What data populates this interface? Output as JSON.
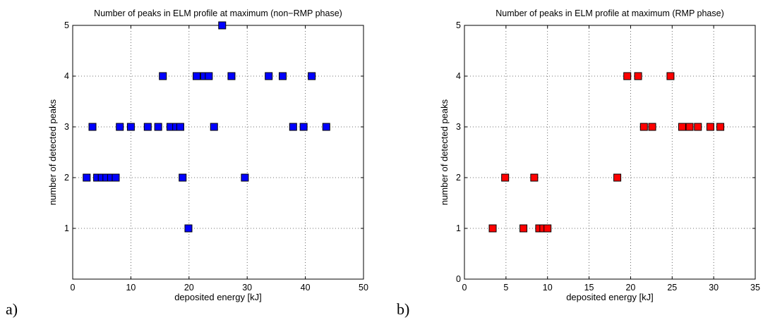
{
  "chart_data": [
    {
      "type": "scatter",
      "panel_label": "a)",
      "title": "Number of peaks in ELM profile at maximum (non−RMP phase)",
      "xlabel": "deposited energy [kJ]",
      "ylabel": "number of detected peaks",
      "xlim": [
        0,
        50
      ],
      "ylim": [
        0,
        5
      ],
      "xticks": [
        0,
        10,
        20,
        30,
        40,
        50
      ],
      "yticks": [
        1,
        2,
        3,
        4,
        5
      ],
      "grid": true,
      "marker": "square",
      "color": "#0000ff",
      "points": [
        [
          2.4,
          2
        ],
        [
          4.2,
          2
        ],
        [
          5.0,
          2
        ],
        [
          5.8,
          2
        ],
        [
          6.6,
          2
        ],
        [
          7.4,
          2
        ],
        [
          3.4,
          3
        ],
        [
          8.1,
          3
        ],
        [
          10.0,
          3
        ],
        [
          12.9,
          3
        ],
        [
          14.7,
          3
        ],
        [
          16.8,
          3
        ],
        [
          17.8,
          3
        ],
        [
          18.5,
          3
        ],
        [
          24.3,
          3
        ],
        [
          37.9,
          3
        ],
        [
          39.7,
          3
        ],
        [
          43.6,
          3
        ],
        [
          15.5,
          4
        ],
        [
          21.3,
          4
        ],
        [
          22.6,
          4
        ],
        [
          23.4,
          4
        ],
        [
          27.3,
          4
        ],
        [
          33.7,
          4
        ],
        [
          36.1,
          4
        ],
        [
          41.1,
          4
        ],
        [
          25.7,
          5
        ],
        [
          18.9,
          2
        ],
        [
          29.6,
          2
        ],
        [
          19.9,
          1
        ]
      ]
    },
    {
      "type": "scatter",
      "panel_label": "b)",
      "title": "Number of peaks in ELM profile at maximum (RMP phase)",
      "xlabel": "deposited energy [kJ]",
      "ylabel": "number of detected peaks",
      "xlim": [
        0,
        35
      ],
      "ylim": [
        0,
        5
      ],
      "xticks": [
        0,
        5,
        10,
        15,
        20,
        25,
        30,
        35
      ],
      "yticks": [
        0,
        1,
        2,
        3,
        4,
        5
      ],
      "grid": true,
      "marker": "square",
      "color": "#ff0000",
      "points": [
        [
          3.4,
          1
        ],
        [
          7.1,
          1
        ],
        [
          9.0,
          1
        ],
        [
          9.5,
          1
        ],
        [
          10.0,
          1
        ],
        [
          4.9,
          2
        ],
        [
          8.4,
          2
        ],
        [
          18.4,
          2
        ],
        [
          21.6,
          3
        ],
        [
          22.6,
          3
        ],
        [
          26.2,
          3
        ],
        [
          27.1,
          3
        ],
        [
          28.1,
          3
        ],
        [
          29.6,
          3
        ],
        [
          30.8,
          3
        ],
        [
          19.6,
          4
        ],
        [
          20.9,
          4
        ],
        [
          24.8,
          4
        ]
      ]
    }
  ]
}
